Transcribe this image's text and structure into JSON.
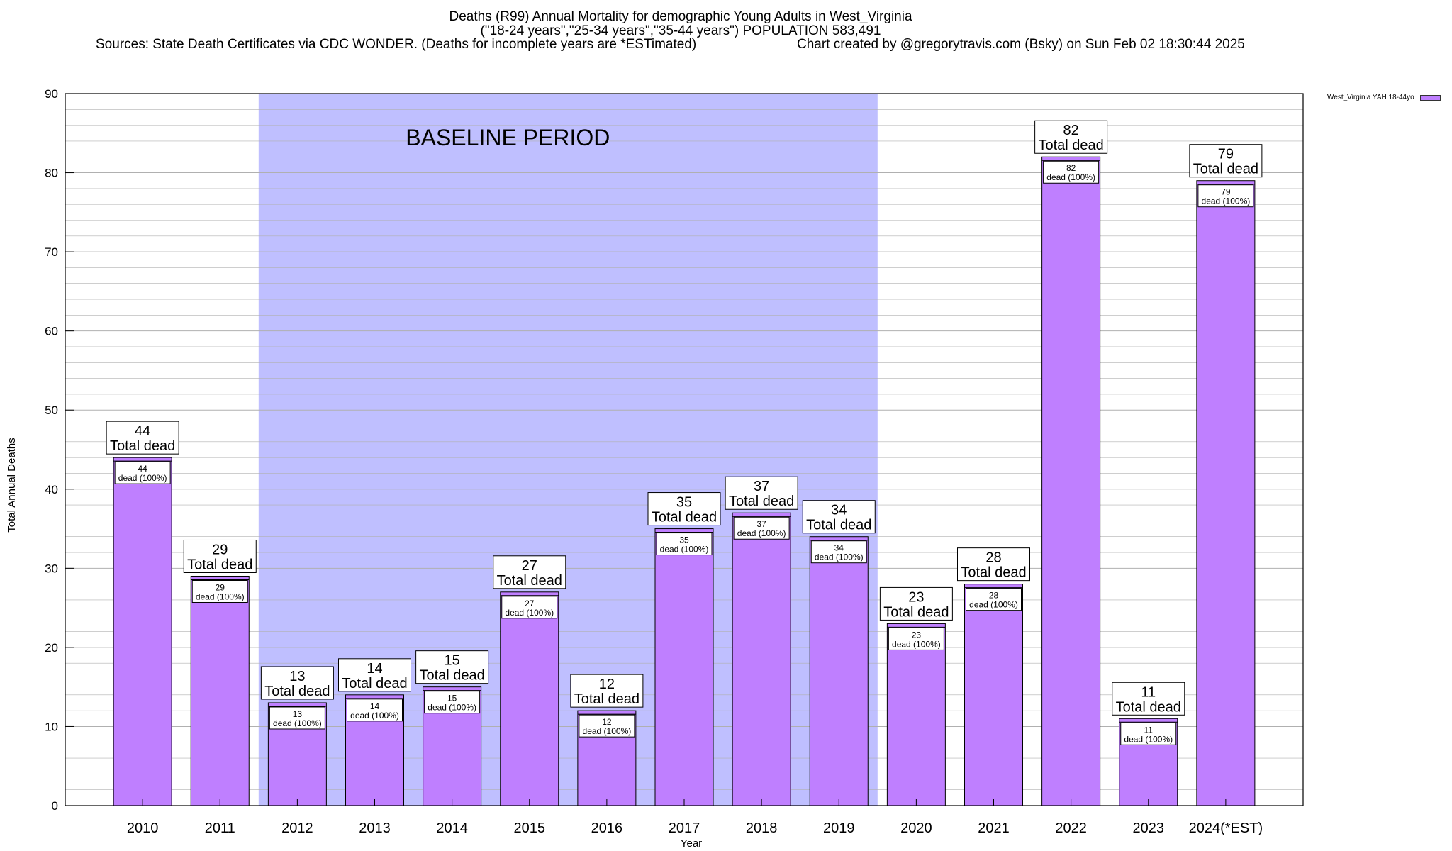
{
  "header": {
    "title_line1": "Deaths (R99) Annual Mortality for demographic Young Adults in West_Virginia",
    "title_line2": "(\"18-24 years\",\"25-34 years\",\"35-44 years\") POPULATION 583,491",
    "sources": "Sources: State Death Certificates via CDC WONDER. (Deaths for incomplete years are *ESTimated)",
    "credit": "Chart created by @gregorytravis.com (Bsky) on Sun Feb 02 18:30:44 2025"
  },
  "legend": {
    "label": "West_Virginia YAH 18-44yo"
  },
  "colors": {
    "bar": "#bf7fff",
    "baseline_band": "#bfbfff",
    "grid": "#b0b0b0"
  },
  "chart_data": {
    "type": "bar",
    "xlabel": "Year",
    "ylabel": "Total Annual Deaths",
    "ylim": [
      0,
      90
    ],
    "yticks": [
      0,
      10,
      20,
      30,
      40,
      50,
      60,
      70,
      80,
      90
    ],
    "grid": true,
    "legend_position": "top-right, outside plot",
    "categories": [
      "2010",
      "2011",
      "2012",
      "2013",
      "2014",
      "2015",
      "2016",
      "2017",
      "2018",
      "2019",
      "2020",
      "2021",
      "2022",
      "2023",
      "2024(*EST)"
    ],
    "series": [
      {
        "name": "West_Virginia YAH 18-44yo",
        "values": [
          44,
          29,
          13,
          14,
          15,
          27,
          12,
          35,
          37,
          34,
          23,
          28,
          82,
          11,
          79
        ]
      }
    ],
    "total_label_suffix": "Total dead",
    "inner_label_suffix": "dead (100%)",
    "baseline": {
      "label": "BASELINE PERIOD",
      "from": "2012",
      "to": "2019"
    }
  }
}
